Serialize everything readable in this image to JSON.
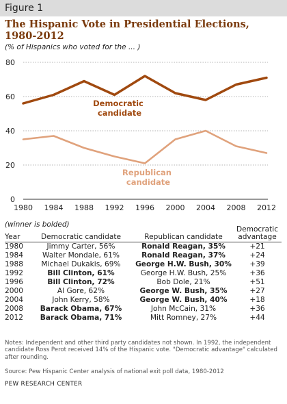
{
  "figure_label": "Figure 1",
  "title": "The Hispanic Vote in Presidential Elections, 1980-2012",
  "subtitle": "(% of Hispanics who voted for the ... )",
  "colors": {
    "democratic": "#a0490f",
    "republican": "#e0a27c"
  },
  "chart_data": {
    "type": "line",
    "x": [
      1980,
      1984,
      1988,
      1992,
      1996,
      2000,
      2004,
      2008,
      2012
    ],
    "series": [
      {
        "name": "Democratic candidate",
        "values": [
          56,
          61,
          69,
          61,
          72,
          62,
          58,
          67,
          71
        ]
      },
      {
        "name": "Republican candidate",
        "values": [
          35,
          37,
          30,
          25,
          21,
          35,
          40,
          31,
          27
        ]
      }
    ],
    "ylim": [
      0,
      80
    ],
    "yticks": [
      0,
      20,
      40,
      60,
      80
    ],
    "grid": true,
    "xlabel": "",
    "ylabel": ""
  },
  "series_labels": {
    "democratic": [
      "Democratic",
      "candidate"
    ],
    "republican": [
      "Republican",
      "candidate"
    ]
  },
  "winner_note": "(winner is bolded)",
  "table": {
    "headers": {
      "year": "Year",
      "dem": "Democratic candidate",
      "rep": "Republican candidate",
      "adv_line1": "Democratic",
      "adv_line2": "advantage"
    },
    "rows": [
      {
        "year": "1980",
        "dem": "Jimmy Carter, 56%",
        "rep": "Ronald Reagan, 35%",
        "adv": "+21",
        "winner": "rep"
      },
      {
        "year": "1984",
        "dem": "Walter Mondale, 61%",
        "rep": "Ronald Reagan, 37%",
        "adv": "+24",
        "winner": "rep"
      },
      {
        "year": "1988",
        "dem": "Michael Dukakis, 69%",
        "rep": "George H.W. Bush, 30%",
        "adv": "+39",
        "winner": "rep"
      },
      {
        "year": "1992",
        "dem": "Bill Clinton, 61%",
        "rep": "George H.W. Bush, 25%",
        "adv": "+36",
        "winner": "dem"
      },
      {
        "year": "1996",
        "dem": "Bill Clinton, 72%",
        "rep": "Bob Dole, 21%",
        "adv": "+51",
        "winner": "dem"
      },
      {
        "year": "2000",
        "dem": "Al Gore, 62%",
        "rep": "George W. Bush, 35%",
        "adv": "+27",
        "winner": "rep"
      },
      {
        "year": "2004",
        "dem": "John Kerry, 58%",
        "rep": "George W. Bush, 40%",
        "adv": "+18",
        "winner": "rep"
      },
      {
        "year": "2008",
        "dem": "Barack Obama, 67%",
        "rep": "John McCain, 31%",
        "adv": "+36",
        "winner": "dem"
      },
      {
        "year": "2012",
        "dem": "Barack Obama, 71%",
        "rep": "Mitt Romney, 27%",
        "adv": "+44",
        "winner": "dem"
      }
    ]
  },
  "notes": "Notes: Independent and other third party candidates not shown. In 1992, the independent candidate Ross Perot received 14% of the Hispanic vote. \"Democratic advantage\" calculated after rounding.",
  "source": "Source: Pew Hispanic Center analysis of national exit poll data, 1980-2012",
  "org": "PEW RESEARCH CENTER"
}
